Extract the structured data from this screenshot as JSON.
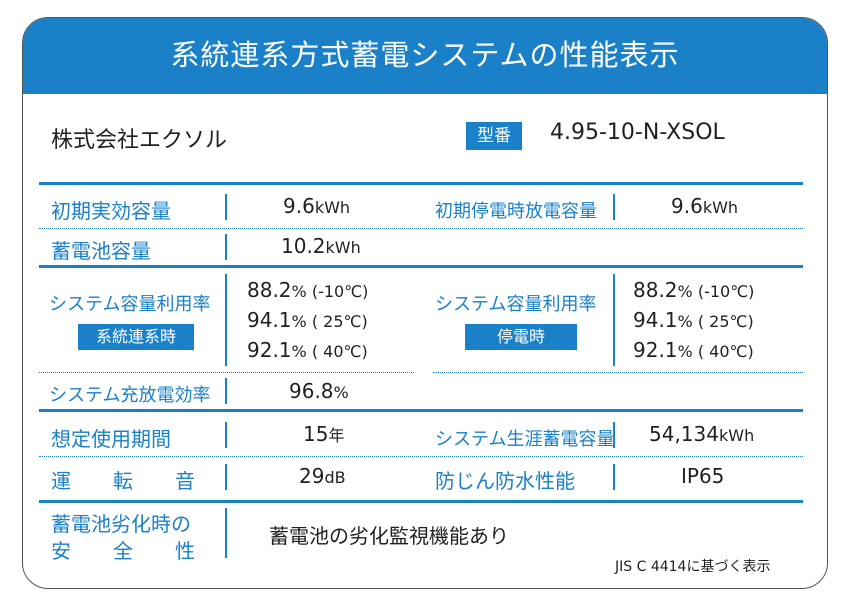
{
  "title": "系統連系方式蓄電システムの性能表示",
  "company": "株式会社エクソル",
  "model_label": "型番",
  "model_value": "4.95-10-N-XSOL",
  "rows": {
    "initial_capacity": {
      "label": "初期実効容量",
      "value": "9.6",
      "unit": "kWh"
    },
    "initial_outage_capacity": {
      "label": "初期停電時放電容量",
      "value": "9.6",
      "unit": "kWh"
    },
    "battery_capacity": {
      "label": "蓄電池容量",
      "value": "10.2",
      "unit": "kWh"
    },
    "utilization_grid": {
      "label": "システム容量利用率",
      "tag": "系統連系時",
      "lines": [
        {
          "value": "88.2",
          "unit": "%",
          "cond": " (-10℃)"
        },
        {
          "value": "94.1",
          "unit": "%",
          "cond": " ( 25℃)"
        },
        {
          "value": "92.1",
          "unit": "%",
          "cond": " ( 40℃)"
        }
      ]
    },
    "utilization_outage": {
      "label": "システム容量利用率",
      "tag": "停電時",
      "lines": [
        {
          "value": "88.2",
          "unit": "%",
          "cond": " (-10℃)"
        },
        {
          "value": "94.1",
          "unit": "%",
          "cond": " ( 25℃)"
        },
        {
          "value": "92.1",
          "unit": "%",
          "cond": " ( 40℃)"
        }
      ]
    },
    "charge_efficiency": {
      "label": "システム充放電効率",
      "value": "96.8",
      "unit": "%"
    },
    "expected_period": {
      "label": "想定使用期間",
      "value": "15",
      "unit": "年"
    },
    "lifetime_capacity": {
      "label": "システム生涯蓄電容量",
      "value": "54,134",
      "unit": "kWh"
    },
    "noise": {
      "label": "運転音",
      "value": "29",
      "unit": "dB"
    },
    "protection": {
      "label": "防じん防水性能",
      "value": "IP65"
    },
    "degradation": {
      "label_line1": "蓄電池劣化時の",
      "label_line2": "安全性",
      "value": "蓄電池の劣化監視機能あり"
    }
  },
  "footnote": "JIS C 4414に基づく表示"
}
